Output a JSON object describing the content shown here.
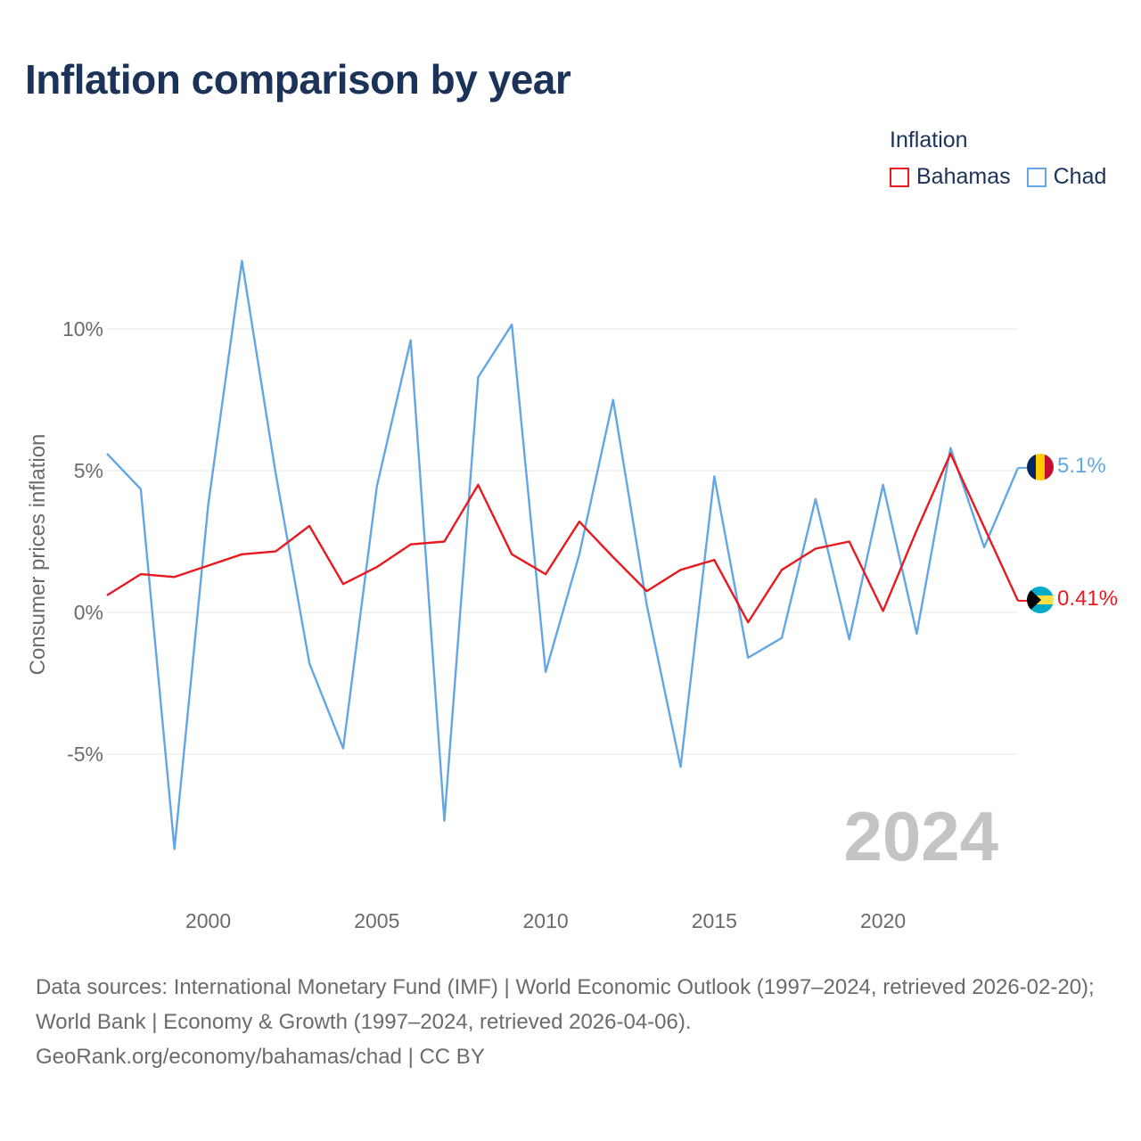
{
  "title": "Inflation comparison by year",
  "legend": {
    "title": "Inflation",
    "items": [
      {
        "name": "Bahamas",
        "color": "#e8191f"
      },
      {
        "name": "Chad",
        "color": "#62a6e3"
      }
    ]
  },
  "year_watermark": "2024",
  "footer": {
    "sources": "Data sources: International Monetary Fund (IMF) | World Economic Outlook (1997–2024, retrieved 2026-02-20); World Bank | Economy & Growth (1997–2024, retrieved 2026-04-06).",
    "credit": "GeoRank.org/economy/bahamas/chad | CC BY"
  },
  "chart_data": {
    "type": "line",
    "title": "Inflation comparison by year",
    "xlabel": "",
    "ylabel": "Consumer prices inflation",
    "xlim": [
      1997,
      2024
    ],
    "ylim": [
      -9.5,
      14.5
    ],
    "x_ticks": [
      2000,
      2005,
      2010,
      2015,
      2020
    ],
    "y_ticks": [
      {
        "value": 10,
        "label": "10%"
      },
      {
        "value": 5,
        "label": "5%"
      },
      {
        "value": 0,
        "label": "0%"
      },
      {
        "value": -5,
        "label": "-5%"
      }
    ],
    "grid": true,
    "x": [
      1997,
      1998,
      1999,
      2000,
      2001,
      2002,
      2003,
      2004,
      2005,
      2006,
      2007,
      2008,
      2009,
      2010,
      2011,
      2012,
      2013,
      2014,
      2015,
      2016,
      2017,
      2018,
      2019,
      2020,
      2021,
      2022,
      2023,
      2024
    ],
    "series": [
      {
        "name": "Bahamas",
        "color": "#e8191f",
        "end_label": "0.41%",
        "values": [
          0.6,
          1.35,
          1.25,
          1.65,
          2.05,
          2.15,
          3.05,
          1.0,
          1.6,
          2.4,
          2.5,
          4.5,
          2.05,
          1.35,
          3.2,
          1.95,
          0.75,
          1.5,
          1.85,
          -0.35,
          1.5,
          2.25,
          2.5,
          0.05,
          2.9,
          5.6,
          3.0,
          0.41
        ]
      },
      {
        "name": "Chad",
        "color": "#62a6e3",
        "end_label": "5.1%",
        "values": [
          5.6,
          4.35,
          -8.35,
          3.8,
          12.4,
          4.9,
          -1.8,
          -4.8,
          4.45,
          9.6,
          -7.35,
          8.3,
          10.15,
          -2.1,
          2.05,
          7.5,
          0.25,
          -5.45,
          4.8,
          -1.6,
          -0.9,
          4.0,
          -0.95,
          4.5,
          -0.75,
          5.8,
          2.3,
          5.1
        ]
      }
    ]
  }
}
